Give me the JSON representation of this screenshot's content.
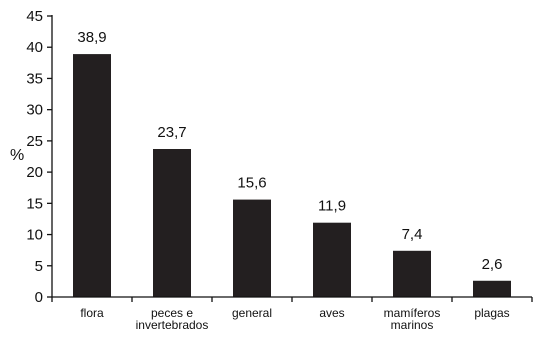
{
  "chart_data": {
    "type": "bar",
    "categories": [
      [
        "flora"
      ],
      [
        "peces e",
        "invertebrados"
      ],
      [
        "general"
      ],
      [
        "aves"
      ],
      [
        "mamíferos",
        "marinos"
      ],
      [
        "plagas"
      ]
    ],
    "values": [
      38.9,
      23.7,
      15.6,
      11.9,
      7.4,
      2.6
    ],
    "value_labels": [
      "38,9",
      "23,7",
      "15,6",
      "11,9",
      "7,4",
      "2,6"
    ],
    "title": "",
    "xlabel": "",
    "ylabel": "%",
    "ylim": [
      0,
      45
    ],
    "yticks": [
      "0",
      "5",
      "10",
      "15",
      "20",
      "25",
      "30",
      "35",
      "40",
      "45"
    ],
    "bar_color": "#231f20",
    "grid": false,
    "legend": "none"
  }
}
